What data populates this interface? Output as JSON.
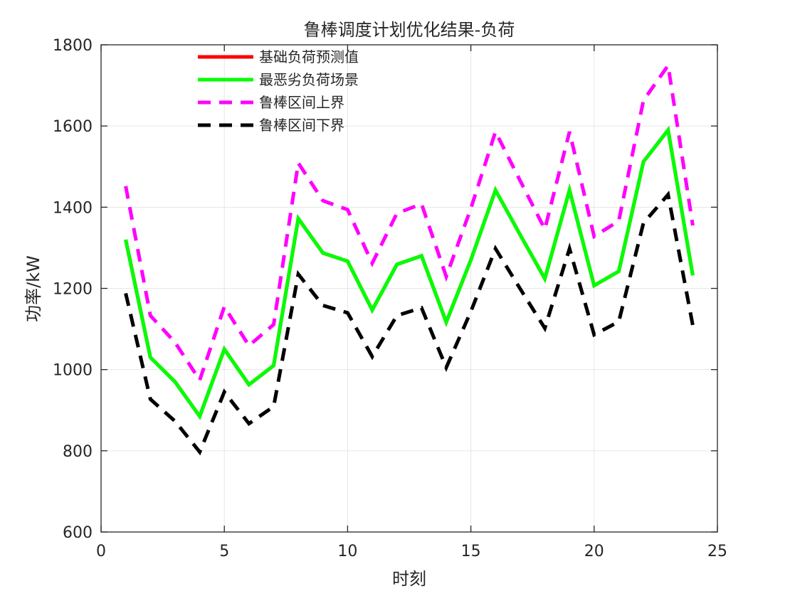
{
  "chart_data": {
    "type": "line",
    "title": "鲁棒调度计划优化结果-负荷",
    "xlabel": "时刻",
    "ylabel": "功率/kW",
    "xlim": [
      0,
      25
    ],
    "ylim": [
      600,
      1800
    ],
    "xticks": [
      0,
      5,
      10,
      15,
      20,
      25
    ],
    "yticks": [
      600,
      800,
      1000,
      1200,
      1400,
      1600,
      1800
    ],
    "grid": true,
    "legend_position": "top-left",
    "x": [
      1,
      2,
      3,
      4,
      5,
      6,
      7,
      8,
      9,
      10,
      11,
      12,
      13,
      14,
      15,
      16,
      17,
      18,
      19,
      20,
      21,
      22,
      23,
      24
    ],
    "series": [
      {
        "name": "基础负荷预测值",
        "color": "#ff0000",
        "style": "solid",
        "values": [
          1320,
          1030,
          970,
          885,
          1050,
          963,
          1010,
          1372,
          1287,
          1267,
          1147,
          1259,
          1280,
          1117,
          1270,
          1442,
          1332,
          1224,
          1442,
          1207,
          1242,
          1512,
          1590,
          1232
        ]
      },
      {
        "name": "最恶劣负荷场景",
        "color": "#00ff00",
        "style": "solid",
        "values": [
          1320,
          1030,
          970,
          885,
          1050,
          963,
          1010,
          1372,
          1287,
          1267,
          1147,
          1259,
          1280,
          1117,
          1270,
          1442,
          1332,
          1224,
          1442,
          1207,
          1242,
          1512,
          1590,
          1232
        ]
      },
      {
        "name": "鲁棒区间上界",
        "color": "#ff00ff",
        "style": "dashed",
        "values": [
          1452,
          1133,
          1067,
          974,
          1155,
          1059,
          1111,
          1509,
          1416,
          1394,
          1262,
          1385,
          1408,
          1229,
          1397,
          1586,
          1465,
          1346,
          1586,
          1328,
          1366,
          1663,
          1749,
          1355
        ]
      },
      {
        "name": "鲁棒区间下界",
        "color": "#000000",
        "style": "dashed",
        "values": [
          1188,
          927,
          873,
          797,
          945,
          867,
          909,
          1235,
          1158,
          1140,
          1032,
          1133,
          1152,
          1005,
          1143,
          1298,
          1199,
          1102,
          1298,
          1086,
          1118,
          1361,
          1431,
          1109
        ]
      }
    ]
  }
}
